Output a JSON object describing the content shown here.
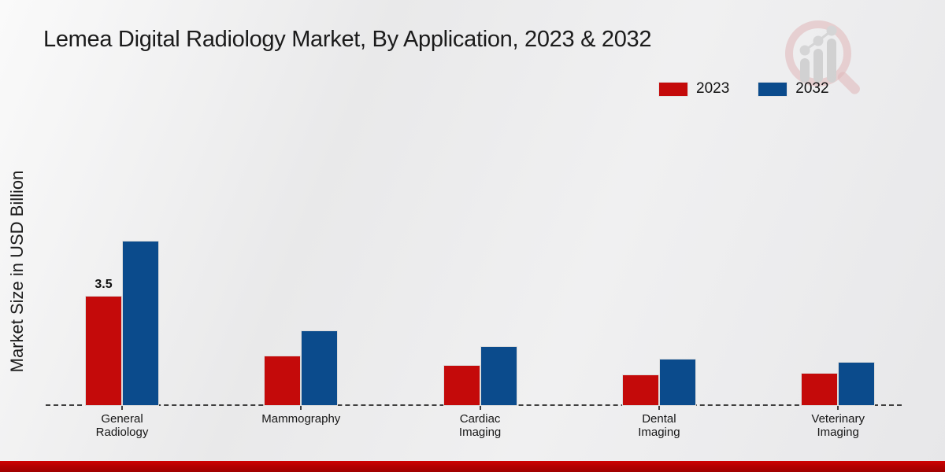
{
  "title": "Lemea Digital Radiology Market, By Application, 2023 & 2032",
  "y_axis_label": "Market Size in USD Billion",
  "legend": [
    {
      "label": "2023",
      "color": "#c40a0a"
    },
    {
      "label": "2032",
      "color": "#0b4b8c"
    }
  ],
  "colors": {
    "series_2023": "#c40a0a",
    "series_2032": "#0b4b8c",
    "footer_stripe": "#b00000",
    "baseline": "#3f3f3f",
    "background": "#ebebec"
  },
  "chart_data": {
    "type": "bar",
    "title": "Lemea Digital Radiology Market, By Application, 2023 & 2032",
    "xlabel": "",
    "ylabel": "Market Size in USD Billion",
    "categories": [
      "General Radiology",
      "Mammography",
      "Cardiac Imaging",
      "Dental Imaging",
      "Veterinary Imaging"
    ],
    "series": [
      {
        "name": "2023",
        "color": "#c40a0a",
        "values": [
          3.5,
          1.6,
          1.3,
          1.0,
          1.05
        ]
      },
      {
        "name": "2032",
        "color": "#0b4b8c",
        "values": [
          5.25,
          2.4,
          1.9,
          1.5,
          1.4
        ]
      }
    ],
    "value_labels": [
      {
        "series": "2023",
        "category_index": 0,
        "text": "3.5"
      }
    ],
    "ylim": [
      0,
      6
    ],
    "grid": false,
    "y_axis_ticks_visible": false,
    "legend_position": "top-right",
    "baseline_style": "dashed"
  },
  "logo_name": "market-research-magnifier-logo"
}
